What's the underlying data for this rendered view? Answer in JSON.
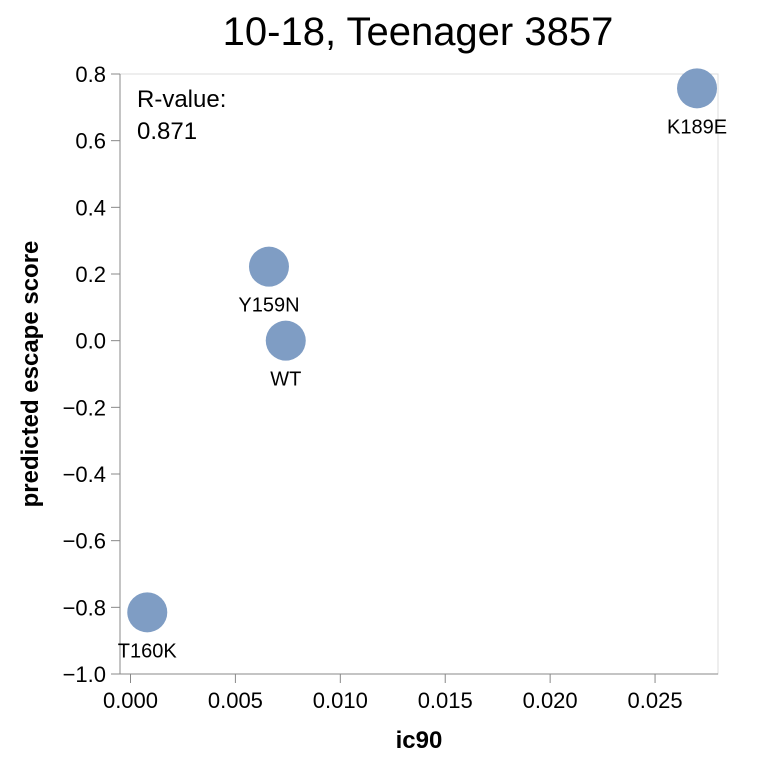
{
  "chart_data": {
    "type": "scatter",
    "title": "10-18, Teenager 3857",
    "xlabel": "ic90",
    "ylabel": "predicted escape score",
    "xlim": [
      -0.0005,
      0.028
    ],
    "ylim": [
      -1.0,
      0.8
    ],
    "x_ticks": [
      0.0,
      0.005,
      0.01,
      0.015,
      0.02,
      0.025
    ],
    "x_tick_labels": [
      "0.000",
      "0.005",
      "0.010",
      "0.015",
      "0.020",
      "0.025"
    ],
    "y_ticks": [
      0.8,
      0.6,
      0.4,
      0.2,
      0.0,
      -0.2,
      -0.4,
      -0.6,
      -0.8,
      -1.0
    ],
    "y_tick_labels": [
      "0.8",
      "0.6",
      "0.4",
      "0.2",
      "0.0",
      "−0.2",
      "−0.4",
      "−0.6",
      "−0.8",
      "−1.0"
    ],
    "grid": false,
    "point_color": "#7f9dc4",
    "points": [
      {
        "label": "K189E",
        "x": 0.027,
        "y": 0.757
      },
      {
        "label": "Y159N",
        "x": 0.0066,
        "y": 0.222
      },
      {
        "label": "WT",
        "x": 0.0074,
        "y": 0.0
      },
      {
        "label": "T160K",
        "x": 0.0008,
        "y": -0.815
      }
    ],
    "annotation": {
      "line1": "R-value:",
      "line2": "0.871"
    }
  }
}
